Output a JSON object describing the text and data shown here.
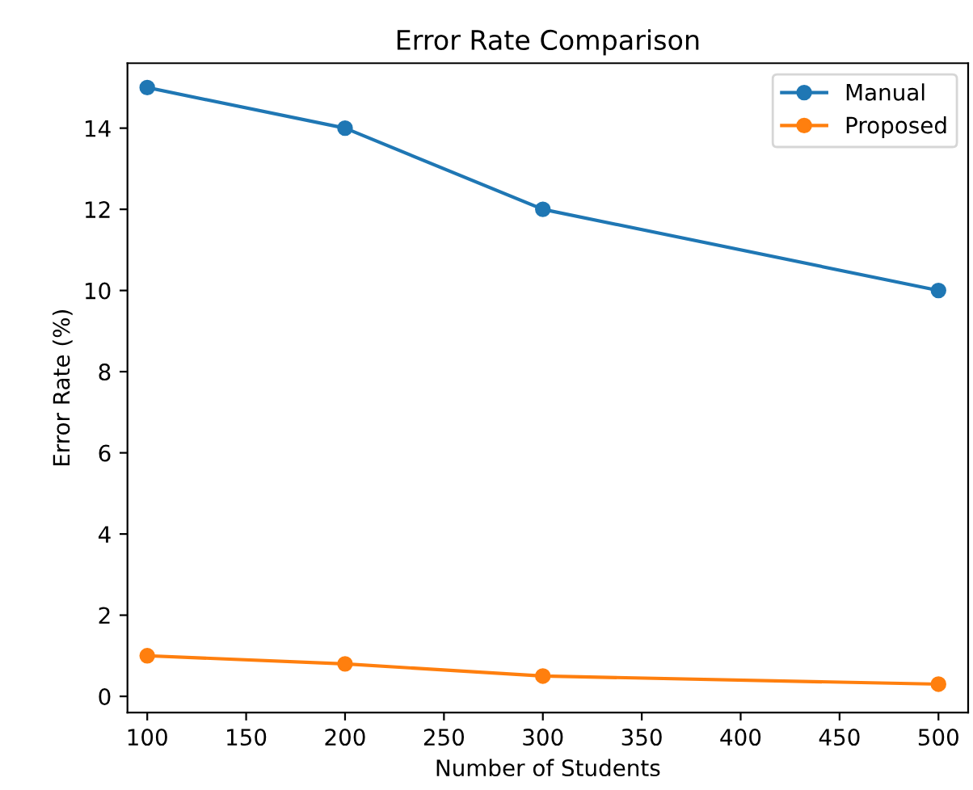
{
  "chart_data": {
    "type": "line",
    "title": "Error Rate Comparison",
    "xlabel": "Number of Students",
    "ylabel": "Error Rate (%)",
    "x": [
      100,
      200,
      300,
      500
    ],
    "series": [
      {
        "name": "Manual",
        "color": "#1f77b4",
        "values": [
          15,
          14,
          12,
          10
        ]
      },
      {
        "name": "Proposed",
        "color": "#ff7f0e",
        "values": [
          1,
          0.8,
          0.5,
          0.3
        ]
      }
    ],
    "xlim": [
      90,
      515
    ],
    "ylim": [
      -0.4,
      15.6
    ],
    "xticks": [
      100,
      150,
      200,
      250,
      300,
      350,
      400,
      450,
      500
    ],
    "yticks": [
      0,
      2,
      4,
      6,
      8,
      10,
      12,
      14
    ],
    "marker": "circle",
    "line_style": "solid",
    "legend": "top right",
    "grid": false
  }
}
